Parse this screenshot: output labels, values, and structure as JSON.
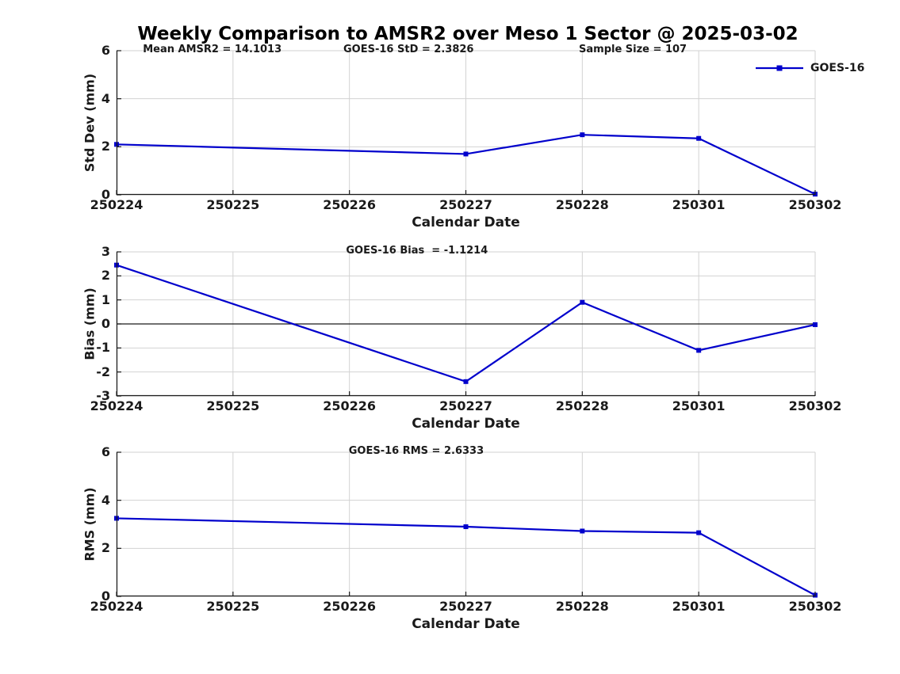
{
  "title": "Weekly Comparison to AMSR2 over Meso 1 Sector @ 2025-03-02",
  "legend": {
    "label": "GOES-16"
  },
  "colors": {
    "line": "#0000cc",
    "grid": "#d2d2d2",
    "axis": "#1a1a1a",
    "background": "#ffffff"
  },
  "x_axis": {
    "label": "Calendar Date",
    "ticks": [
      "250224",
      "250225",
      "250226",
      "250227",
      "250228",
      "250301",
      "250302"
    ]
  },
  "chart_data": [
    {
      "type": "line",
      "id": "std-dev",
      "ylabel": "Std Dev (mm)",
      "xlabel": "Calendar Date",
      "ylim": [
        0,
        6
      ],
      "yticks": [
        0,
        2,
        4,
        6
      ],
      "grid": true,
      "zero_line": false,
      "xticklabels": [
        "250224",
        "250225",
        "250226",
        "250227",
        "250228",
        "250301",
        "250302"
      ],
      "annotations": [
        {
          "text": "Mean AMSR2 = 14.1013",
          "xfrac": 0.137
        },
        {
          "text": "GOES-16 StD = 2.3826",
          "xfrac": 0.418
        },
        {
          "text": "Sample Size = 107",
          "xfrac": 0.739
        }
      ],
      "series": [
        {
          "name": "GOES-16",
          "marker": "square",
          "x": [
            "250224",
            "250227",
            "250228",
            "250301",
            "250302"
          ],
          "values": [
            2.1,
            1.7,
            2.5,
            2.35,
            0.03
          ]
        }
      ]
    },
    {
      "type": "line",
      "id": "bias",
      "ylabel": "Bias (mm)",
      "xlabel": "Calendar Date",
      "ylim": [
        -3,
        3
      ],
      "yticks": [
        -3,
        -2,
        -1,
        0,
        1,
        2,
        3
      ],
      "grid": true,
      "zero_line": true,
      "xticklabels": [
        "250224",
        "250225",
        "250226",
        "250227",
        "250228",
        "250301",
        "250302"
      ],
      "annotations": [
        {
          "text": "GOES-16 Bias  = -1.1214",
          "xfrac": 0.43
        }
      ],
      "series": [
        {
          "name": "GOES-16",
          "marker": "square",
          "x": [
            "250224",
            "250227",
            "250228",
            "250301",
            "250302"
          ],
          "values": [
            2.45,
            -2.4,
            0.9,
            -1.1,
            -0.03
          ]
        }
      ]
    },
    {
      "type": "line",
      "id": "rms",
      "ylabel": "RMS (mm)",
      "xlabel": "Calendar Date",
      "ylim": [
        0,
        6
      ],
      "yticks": [
        0,
        2,
        4,
        6
      ],
      "grid": true,
      "zero_line": false,
      "xticklabels": [
        "250224",
        "250225",
        "250226",
        "250227",
        "250228",
        "250301",
        "250302"
      ],
      "annotations": [
        {
          "text": "GOES-16 RMS = 2.6333",
          "xfrac": 0.429
        }
      ],
      "series": [
        {
          "name": "GOES-16",
          "marker": "square",
          "x": [
            "250224",
            "250227",
            "250228",
            "250301",
            "250302"
          ],
          "values": [
            3.25,
            2.9,
            2.72,
            2.65,
            0.05
          ]
        }
      ]
    }
  ]
}
